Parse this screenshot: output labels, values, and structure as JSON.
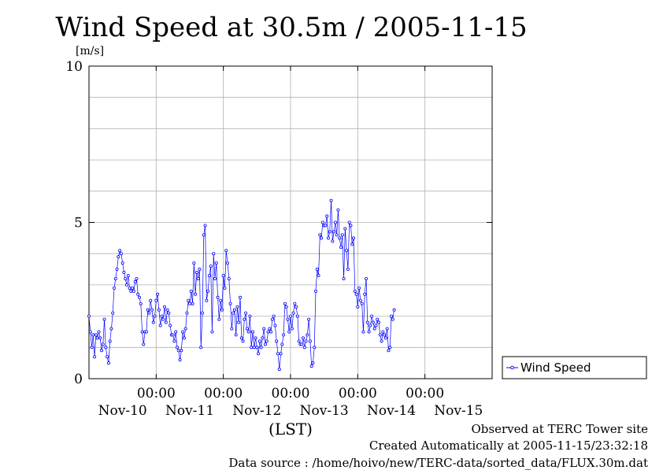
{
  "chart_data": {
    "type": "line",
    "title": "Wind Speed at 30.5m / 2005-11-15",
    "ylabel": "[m/s]",
    "xlabel": "(LST)",
    "ylim": [
      0,
      10
    ],
    "yticks": [
      "0",
      "5",
      "10"
    ],
    "xticks_time": [
      "00:00",
      "00:00",
      "00:00",
      "00:00",
      "00:00"
    ],
    "xticks_date": [
      "Nov-10",
      "Nov-11",
      "Nov-12",
      "Nov-13",
      "Nov-14",
      "Nov-15"
    ],
    "xrange_hours": [
      0,
      144
    ],
    "xtick_hours": [
      24,
      48,
      72,
      96,
      120
    ],
    "grid": true,
    "legend_position": "right",
    "series": [
      {
        "name": "Wind Speed",
        "color": "#0000ff",
        "interval_minutes": 30,
        "values": [
          2.0,
          1.5,
          1.0,
          1.4,
          0.7,
          1.4,
          1.3,
          1.5,
          1.3,
          0.9,
          1.1,
          1.9,
          1.0,
          0.7,
          0.5,
          1.2,
          1.6,
          2.1,
          2.9,
          3.2,
          3.5,
          3.9,
          4.1,
          4.0,
          3.7,
          3.4,
          3.2,
          3.0,
          3.3,
          2.9,
          2.8,
          2.9,
          2.8,
          3.1,
          3.2,
          2.7,
          2.6,
          2.4,
          1.5,
          1.1,
          1.5,
          1.5,
          2.2,
          2.1,
          2.5,
          2.2,
          1.8,
          2.0,
          2.5,
          2.7,
          2.2,
          1.7,
          2.0,
          1.9,
          2.3,
          1.8,
          2.2,
          2.1,
          1.7,
          1.4,
          1.4,
          1.2,
          1.5,
          1.0,
          0.9,
          0.6,
          0.9,
          1.5,
          1.3,
          1.6,
          2.1,
          2.5,
          2.4,
          2.8,
          2.4,
          3.7,
          2.7,
          3.4,
          3.2,
          3.5,
          1.0,
          2.1,
          4.6,
          4.9,
          2.5,
          2.8,
          3.3,
          3.6,
          1.5,
          4.0,
          3.2,
          3.7,
          2.6,
          1.9,
          2.5,
          2.2,
          3.3,
          2.9,
          4.1,
          3.7,
          3.2,
          2.4,
          1.6,
          2.1,
          2.2,
          1.4,
          2.3,
          1.8,
          2.6,
          1.3,
          1.2,
          1.9,
          2.1,
          1.6,
          1.5,
          2.0,
          1.0,
          1.5,
          1.0,
          1.3,
          1.0,
          0.8,
          1.2,
          1.0,
          1.3,
          1.6,
          1.1,
          1.2,
          1.5,
          1.6,
          1.5,
          1.9,
          2.0,
          1.7,
          1.2,
          0.8,
          0.3,
          0.8,
          1.1,
          1.4,
          2.4,
          2.3,
          1.9,
          1.5,
          2.0,
          1.6,
          2.1,
          2.4,
          2.3,
          2.0,
          1.2,
          1.1,
          1.1,
          1.3,
          1.0,
          1.2,
          1.4,
          1.9,
          1.2,
          0.4,
          0.5,
          1.0,
          2.8,
          3.5,
          3.3,
          4.6,
          4.5,
          5.0,
          4.9,
          4.9,
          5.2,
          4.5,
          4.7,
          5.7,
          4.4,
          4.7,
          5.0,
          4.6,
          5.4,
          4.5,
          4.2,
          4.6,
          3.2,
          4.8,
          4.1,
          3.5,
          5.0,
          4.9,
          4.3,
          4.5,
          2.8,
          2.7,
          2.3,
          2.9,
          2.5,
          2.4,
          1.5,
          2.7,
          3.2,
          1.8,
          1.5,
          1.7,
          2.0,
          1.8,
          1.6,
          1.7,
          1.9,
          1.8,
          1.4,
          1.2,
          1.5,
          1.4,
          1.3,
          1.6,
          0.9,
          1.0,
          2.0,
          1.9,
          2.2
        ]
      }
    ],
    "footer": {
      "observed": "Observed at TERC Tower site",
      "created": "Created Automatically at 2005-11-15/23:32:18",
      "source": "Data source : /home/hoivo/new/TERC-data/sorted_data/FLUX.30m.dat"
    }
  }
}
